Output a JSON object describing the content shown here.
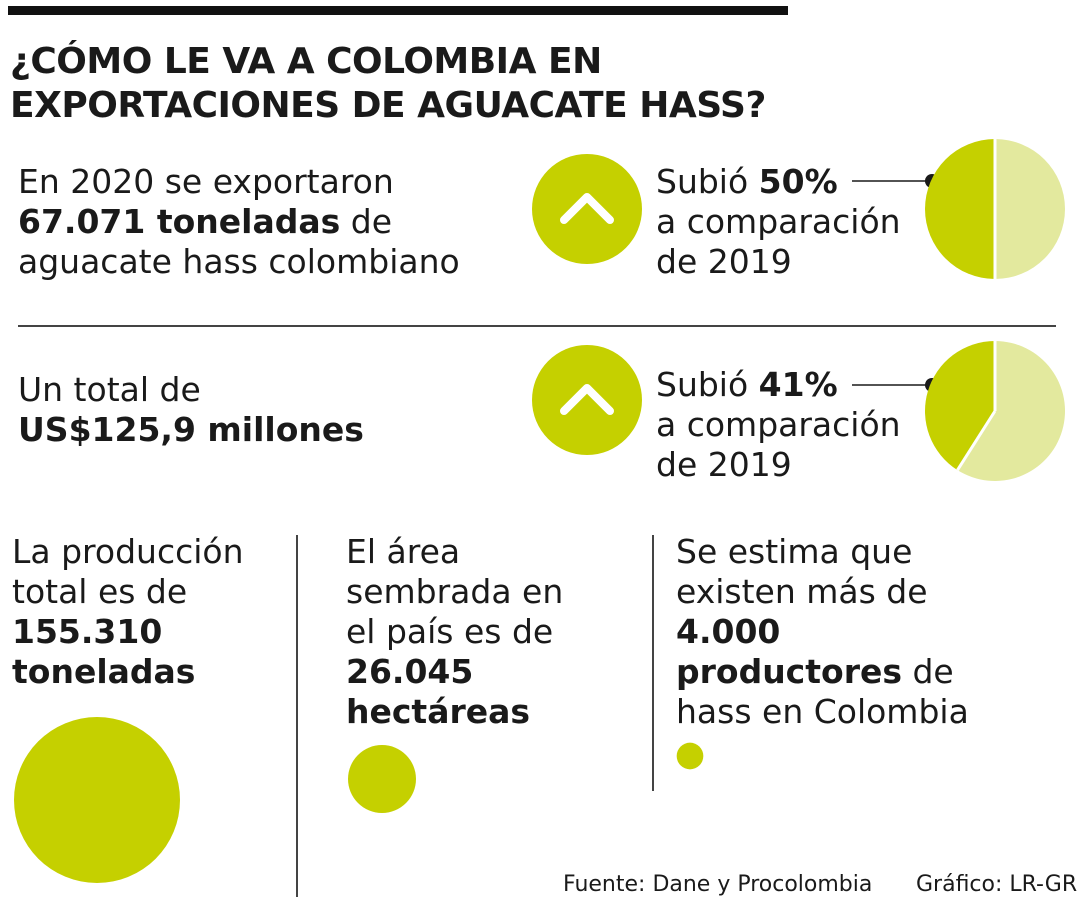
{
  "title": {
    "line1": "¿CÓMO LE VA A COLOMBIA EN",
    "line2": "EXPORTACIONES DE AGUACATE HASS?"
  },
  "colors": {
    "accent": "#c5d000",
    "accent_light": "#e3e99e",
    "text": "#1a1a1a"
  },
  "row1": {
    "line1": "En 2020 se exportaron",
    "bold": "67.071 toneladas",
    "line2_rest": " de",
    "line3": "aguacate hass colombiano",
    "change": {
      "prefix": "Subió ",
      "value": "50%",
      "line2": "a comparación",
      "line3": "de 2019",
      "icon": "chevron-up-icon"
    }
  },
  "row2": {
    "line1": "Un total de",
    "bold": "US$125,9 millones",
    "change": {
      "prefix": "Subió ",
      "value": "41%",
      "line2": "a comparación",
      "line3": "de 2019",
      "icon": "chevron-up-icon"
    }
  },
  "col1": {
    "line1": "La producción",
    "line2": "total es de",
    "bold1": "155.310",
    "bold2": "toneladas"
  },
  "col2": {
    "line1": "El área",
    "line2": "sembrada en",
    "line3": "el país es de",
    "bold1": "26.045",
    "bold2": "hectáreas"
  },
  "col3": {
    "line1": "Se estima que",
    "line2": "existen más de",
    "bold1": "4.000",
    "bold2": "productores",
    "line4_rest": " de",
    "line5": "hass en Colombia"
  },
  "footer": {
    "source": "Fuente: Dane y Procolombia",
    "credit": "Gráfico: LR-GR"
  },
  "chart_data": [
    {
      "type": "pie",
      "values": [
        50,
        50
      ],
      "highlight_index": 0
    },
    {
      "type": "pie",
      "values": [
        41,
        59
      ],
      "highlight_index": 0
    },
    {
      "type": "bubble",
      "categories": [
        "toneladas",
        "hectáreas",
        "productores"
      ],
      "values": [
        155310,
        26045,
        4000
      ]
    }
  ]
}
